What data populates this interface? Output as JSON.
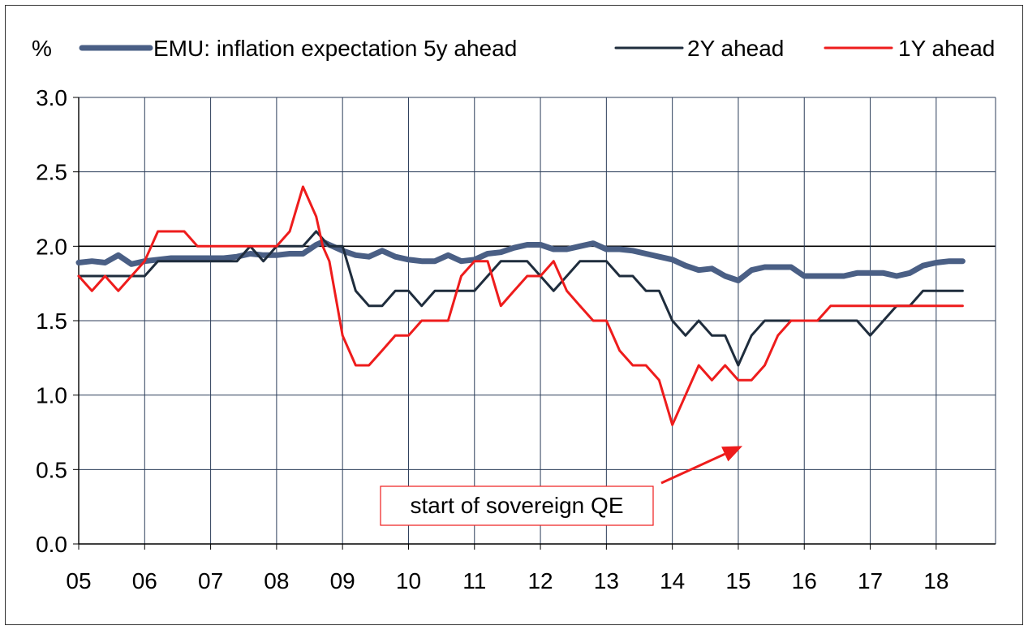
{
  "chart_data": {
    "type": "line",
    "unit_label": "%",
    "ylim": [
      0,
      3
    ],
    "yticks": [
      "0.0",
      "0.5",
      "1.0",
      "1.5",
      "2.0",
      "2.5",
      "3.0"
    ],
    "xlim": [
      2005,
      2018.9
    ],
    "xticks": [
      "05",
      "06",
      "07",
      "08",
      "09",
      "10",
      "11",
      "12",
      "13",
      "14",
      "15",
      "16",
      "17",
      "18"
    ],
    "grid": true,
    "reference_line": 2.0,
    "legend_position": "top",
    "x": [
      2005.0,
      2005.2,
      2005.4,
      2005.6,
      2005.8,
      2006.0,
      2006.2,
      2006.4,
      2006.6,
      2006.8,
      2007.0,
      2007.2,
      2007.4,
      2007.6,
      2007.8,
      2008.0,
      2008.2,
      2008.4,
      2008.6,
      2008.7,
      2008.8,
      2009.0,
      2009.2,
      2009.4,
      2009.6,
      2009.8,
      2010.0,
      2010.2,
      2010.4,
      2010.6,
      2010.8,
      2011.0,
      2011.2,
      2011.4,
      2011.6,
      2011.8,
      2012.0,
      2012.2,
      2012.4,
      2012.6,
      2012.8,
      2013.0,
      2013.2,
      2013.4,
      2013.6,
      2013.8,
      2014.0,
      2014.2,
      2014.4,
      2014.6,
      2014.8,
      2015.0,
      2015.2,
      2015.4,
      2015.6,
      2015.8,
      2016.0,
      2016.2,
      2016.4,
      2016.6,
      2016.8,
      2017.0,
      2017.2,
      2017.4,
      2017.6,
      2017.8,
      2018.0,
      2018.2,
      2018.4
    ],
    "series": [
      {
        "name": "EMU: inflation expectation 5y ahead",
        "color": "#4a5f85",
        "width": 7,
        "values": [
          1.89,
          1.9,
          1.89,
          1.94,
          1.88,
          1.9,
          1.91,
          1.92,
          1.92,
          1.92,
          1.92,
          1.92,
          1.93,
          1.95,
          1.94,
          1.94,
          1.95,
          1.95,
          2.01,
          2.03,
          2.01,
          1.97,
          1.94,
          1.93,
          1.97,
          1.93,
          1.91,
          1.9,
          1.9,
          1.94,
          1.9,
          1.91,
          1.95,
          1.96,
          1.99,
          2.01,
          2.01,
          1.98,
          1.98,
          2.0,
          2.02,
          1.98,
          1.98,
          1.97,
          1.95,
          1.93,
          1.91,
          1.87,
          1.84,
          1.85,
          1.8,
          1.77,
          1.84,
          1.86,
          1.86,
          1.86,
          1.8,
          1.8,
          1.8,
          1.8,
          1.82,
          1.82,
          1.82,
          1.8,
          1.82,
          1.87,
          1.89,
          1.9,
          1.9
        ]
      },
      {
        "name": "2Y ahead",
        "color": "#1f2d3d",
        "width": 3,
        "values": [
          1.8,
          1.8,
          1.8,
          1.8,
          1.8,
          1.8,
          1.9,
          1.9,
          1.9,
          1.9,
          1.9,
          1.9,
          1.9,
          2.0,
          1.9,
          2.0,
          2.0,
          2.0,
          2.1,
          2.05,
          2.0,
          2.0,
          1.7,
          1.6,
          1.6,
          1.7,
          1.7,
          1.6,
          1.7,
          1.7,
          1.7,
          1.7,
          1.8,
          1.9,
          1.9,
          1.9,
          1.8,
          1.7,
          1.8,
          1.9,
          1.9,
          1.9,
          1.8,
          1.8,
          1.7,
          1.7,
          1.5,
          1.4,
          1.5,
          1.4,
          1.4,
          1.2,
          1.4,
          1.5,
          1.5,
          1.5,
          1.5,
          1.5,
          1.5,
          1.5,
          1.5,
          1.4,
          1.5,
          1.6,
          1.6,
          1.7,
          1.7,
          1.7,
          1.7
        ]
      },
      {
        "name": "1Y ahead",
        "color": "#ee1c1c",
        "width": 3,
        "values": [
          1.8,
          1.7,
          1.8,
          1.7,
          1.8,
          1.9,
          2.1,
          2.1,
          2.1,
          2.0,
          2.0,
          2.0,
          2.0,
          2.0,
          2.0,
          2.0,
          2.1,
          2.4,
          2.2,
          2.0,
          1.9,
          1.4,
          1.2,
          1.2,
          1.3,
          1.4,
          1.4,
          1.5,
          1.5,
          1.5,
          1.8,
          1.9,
          1.9,
          1.6,
          1.7,
          1.8,
          1.8,
          1.9,
          1.7,
          1.6,
          1.5,
          1.5,
          1.3,
          1.2,
          1.2,
          1.1,
          0.8,
          1.0,
          1.2,
          1.1,
          1.2,
          1.1,
          1.1,
          1.2,
          1.4,
          1.5,
          1.5,
          1.5,
          1.6,
          1.6,
          1.6,
          1.6,
          1.6,
          1.6,
          1.6,
          1.6,
          1.6,
          1.6,
          1.6
        ]
      }
    ],
    "annotation": {
      "text": "start of sovereign QE",
      "color": "#ee1c1c",
      "points_to": {
        "x": 2015.1,
        "y": 0.8
      }
    }
  }
}
